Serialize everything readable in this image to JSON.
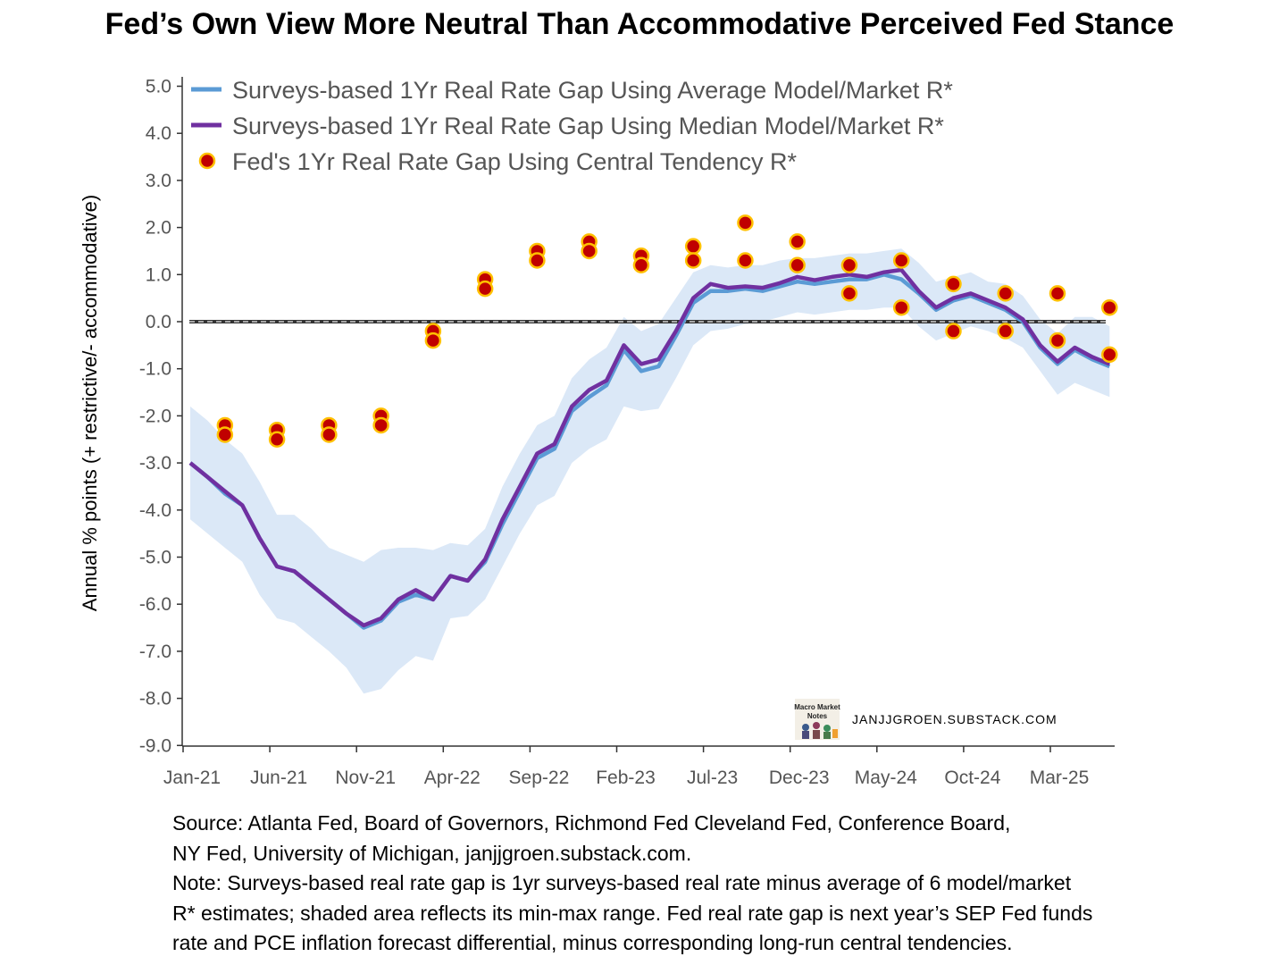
{
  "title": "Fed’s Own View More Neutral Than Accommodative Perceived Fed Stance",
  "notes": [
    "Source: Atlanta Fed, Board of Governors, Richmond Fed Cleveland Fed, Conference Board,",
    "NY Fed, University of Michigan, janjjgroen.substack.com.",
    "Note: Surveys-based real rate gap is 1yr surveys-based real rate minus average  of 6 model/market",
    "R* estimates; shaded area reflects its min-max range. Fed real rate gap is next year’s SEP Fed funds",
    "rate and PCE inflation forecast differential, minus corresponding long-run central tendencies."
  ],
  "watermark": {
    "logo_text": "Macro Market Notes",
    "site": "JANJJGROEN.SUBSTACK.COM"
  },
  "colors": {
    "average_line": "#5b9bd5",
    "median_line": "#7030a0",
    "band": "#dbe8f7",
    "dots_fill": "#c00000",
    "dots_edge": "#ffc000",
    "zero_line": "#333333"
  },
  "chart_data": {
    "type": "line",
    "ylabel": "Annual % points (+ restrictive/- accommodative)",
    "xlabel": "",
    "ylim": [
      -9.0,
      5.0
    ],
    "yticks": [
      "5.0",
      "4.0",
      "3.0",
      "2.0",
      "1.0",
      "0.0",
      "-1.0",
      "-2.0",
      "-3.0",
      "-4.0",
      "-5.0",
      "-6.0",
      "-7.0",
      "-8.0",
      "-9.0"
    ],
    "xticks": [
      "Jan-21",
      "Jun-21",
      "Nov-21",
      "Apr-22",
      "Sep-22",
      "Feb-23",
      "Jul-23",
      "Dec-23",
      "May-24",
      "Oct-24",
      "Mar-25"
    ],
    "reference_line": 0.0,
    "legend_position": "top-left",
    "series": [
      {
        "name": "Surveys-based 1Yr Real Rate Gap Using Average Model/Market R*",
        "kind": "line",
        "x": [
          "Jan-21",
          "Feb-21",
          "Mar-21",
          "Apr-21",
          "May-21",
          "Jun-21",
          "Jul-21",
          "Aug-21",
          "Sep-21",
          "Oct-21",
          "Nov-21",
          "Dec-21",
          "Jan-22",
          "Feb-22",
          "Mar-22",
          "Apr-22",
          "May-22",
          "Jun-22",
          "Jul-22",
          "Aug-22",
          "Sep-22",
          "Oct-22",
          "Nov-22",
          "Dec-22",
          "Jan-23",
          "Feb-23",
          "Mar-23",
          "Apr-23",
          "May-23",
          "Jun-23",
          "Jul-23",
          "Aug-23",
          "Sep-23",
          "Oct-23",
          "Nov-23",
          "Dec-23",
          "Jan-24",
          "Feb-24",
          "Mar-24",
          "Apr-24",
          "May-24",
          "Jun-24",
          "Jul-24",
          "Aug-24",
          "Sep-24",
          "Oct-24",
          "Nov-24",
          "Dec-24",
          "Jan-25",
          "Feb-25",
          "Mar-25",
          "Apr-25",
          "May-25",
          "Jun-25"
        ],
        "values": [
          -3.0,
          -3.3,
          -3.65,
          -3.9,
          -4.6,
          -5.2,
          -5.3,
          -5.6,
          -5.9,
          -6.2,
          -6.5,
          -6.35,
          -5.95,
          -5.8,
          -5.9,
          -5.4,
          -5.5,
          -5.1,
          -4.3,
          -3.6,
          -2.9,
          -2.7,
          -1.9,
          -1.6,
          -1.35,
          -0.6,
          -1.05,
          -0.95,
          -0.3,
          0.4,
          0.65,
          0.65,
          0.7,
          0.65,
          0.75,
          0.85,
          0.8,
          0.85,
          0.9,
          0.9,
          1.0,
          0.9,
          0.6,
          0.25,
          0.45,
          0.55,
          0.4,
          0.25,
          0.0,
          -0.55,
          -0.9,
          -0.6,
          -0.8,
          -0.95
        ]
      },
      {
        "name": "Surveys-based 1Yr Real Rate Gap Using Median Model/Market R*",
        "kind": "line",
        "x": [
          "Jan-21",
          "Feb-21",
          "Mar-21",
          "Apr-21",
          "May-21",
          "Jun-21",
          "Jul-21",
          "Aug-21",
          "Sep-21",
          "Oct-21",
          "Nov-21",
          "Dec-21",
          "Jan-22",
          "Feb-22",
          "Mar-22",
          "Apr-22",
          "May-22",
          "Jun-22",
          "Jul-22",
          "Aug-22",
          "Sep-22",
          "Oct-22",
          "Nov-22",
          "Dec-22",
          "Jan-23",
          "Feb-23",
          "Mar-23",
          "Apr-23",
          "May-23",
          "Jun-23",
          "Jul-23",
          "Aug-23",
          "Sep-23",
          "Oct-23",
          "Nov-23",
          "Dec-23",
          "Jan-24",
          "Feb-24",
          "Mar-24",
          "Apr-24",
          "May-24",
          "Jun-24",
          "Jul-24",
          "Aug-24",
          "Sep-24",
          "Oct-24",
          "Nov-24",
          "Dec-24",
          "Jan-25",
          "Feb-25",
          "Mar-25",
          "Apr-25",
          "May-25",
          "Jun-25"
        ],
        "values": [
          -3.0,
          -3.3,
          -3.6,
          -3.9,
          -4.6,
          -5.2,
          -5.3,
          -5.6,
          -5.9,
          -6.2,
          -6.45,
          -6.3,
          -5.9,
          -5.7,
          -5.9,
          -5.4,
          -5.5,
          -5.05,
          -4.2,
          -3.5,
          -2.8,
          -2.6,
          -1.8,
          -1.45,
          -1.25,
          -0.5,
          -0.9,
          -0.8,
          -0.2,
          0.5,
          0.8,
          0.72,
          0.75,
          0.72,
          0.82,
          0.95,
          0.88,
          0.95,
          1.0,
          0.95,
          1.05,
          1.1,
          0.65,
          0.3,
          0.5,
          0.6,
          0.45,
          0.3,
          0.05,
          -0.5,
          -0.85,
          -0.55,
          -0.75,
          -0.9
        ]
      }
    ],
    "band": {
      "name": "min-max range",
      "x": [
        "Jan-21",
        "Feb-21",
        "Mar-21",
        "Apr-21",
        "May-21",
        "Jun-21",
        "Jul-21",
        "Aug-21",
        "Sep-21",
        "Oct-21",
        "Nov-21",
        "Dec-21",
        "Jan-22",
        "Feb-22",
        "Mar-22",
        "Apr-22",
        "May-22",
        "Jun-22",
        "Jul-22",
        "Aug-22",
        "Sep-22",
        "Oct-22",
        "Nov-22",
        "Dec-22",
        "Jan-23",
        "Feb-23",
        "Mar-23",
        "Apr-23",
        "May-23",
        "Jun-23",
        "Jul-23",
        "Aug-23",
        "Sep-23",
        "Oct-23",
        "Nov-23",
        "Dec-23",
        "Jan-24",
        "Feb-24",
        "Mar-24",
        "Apr-24",
        "May-24",
        "Jun-24",
        "Jul-24",
        "Aug-24",
        "Sep-24",
        "Oct-24",
        "Nov-24",
        "Dec-24",
        "Jan-25",
        "Feb-25",
        "Mar-25",
        "Apr-25",
        "May-25",
        "Jun-25"
      ],
      "low": [
        -4.2,
        -4.5,
        -4.8,
        -5.1,
        -5.8,
        -6.3,
        -6.4,
        -6.7,
        -7.0,
        -7.35,
        -7.9,
        -7.8,
        -7.4,
        -7.1,
        -7.2,
        -6.3,
        -6.25,
        -5.9,
        -5.2,
        -4.5,
        -3.9,
        -3.7,
        -3.0,
        -2.7,
        -2.5,
        -1.8,
        -1.9,
        -1.85,
        -1.2,
        -0.5,
        -0.2,
        -0.15,
        -0.05,
        0.0,
        0.1,
        0.2,
        0.15,
        0.2,
        0.25,
        0.25,
        0.3,
        0.3,
        -0.1,
        -0.4,
        -0.25,
        -0.1,
        -0.2,
        -0.35,
        -0.55,
        -1.05,
        -1.55,
        -1.3,
        -1.45,
        -1.6
      ],
      "high": [
        -1.8,
        -2.1,
        -2.5,
        -2.8,
        -3.4,
        -4.1,
        -4.1,
        -4.4,
        -4.8,
        -4.95,
        -5.1,
        -4.85,
        -4.8,
        -4.8,
        -4.85,
        -4.7,
        -4.75,
        -4.4,
        -3.5,
        -2.8,
        -2.2,
        -2.0,
        -1.2,
        -0.8,
        -0.55,
        0.1,
        -0.2,
        -0.05,
        0.5,
        1.05,
        1.2,
        1.15,
        1.2,
        1.2,
        1.3,
        1.35,
        1.35,
        1.4,
        1.45,
        1.45,
        1.5,
        1.55,
        1.25,
        0.85,
        0.95,
        1.05,
        0.85,
        0.8,
        0.55,
        0.05,
        -0.25,
        0.1,
        0.1,
        -0.1
      ]
    },
    "dots": {
      "name": "Fed's 1Yr Real Rate Gap Using Central Tendency R*",
      "kind": "scatter",
      "points": [
        {
          "x": "Mar-21",
          "y": -2.2
        },
        {
          "x": "Mar-21",
          "y": -2.4
        },
        {
          "x": "Jun-21",
          "y": -2.3
        },
        {
          "x": "Jun-21",
          "y": -2.5
        },
        {
          "x": "Sep-21",
          "y": -2.2
        },
        {
          "x": "Sep-21",
          "y": -2.4
        },
        {
          "x": "Dec-21",
          "y": -2.0
        },
        {
          "x": "Dec-21",
          "y": -2.2
        },
        {
          "x": "Mar-22",
          "y": -0.2
        },
        {
          "x": "Mar-22",
          "y": -0.4
        },
        {
          "x": "Jun-22",
          "y": 0.9
        },
        {
          "x": "Jun-22",
          "y": 0.7
        },
        {
          "x": "Sep-22",
          "y": 1.5
        },
        {
          "x": "Sep-22",
          "y": 1.3
        },
        {
          "x": "Dec-22",
          "y": 1.7
        },
        {
          "x": "Dec-22",
          "y": 1.5
        },
        {
          "x": "Mar-23",
          "y": 1.4
        },
        {
          "x": "Mar-23",
          "y": 1.2
        },
        {
          "x": "Jun-23",
          "y": 1.6
        },
        {
          "x": "Jun-23",
          "y": 1.3
        },
        {
          "x": "Sep-23",
          "y": 2.1
        },
        {
          "x": "Sep-23",
          "y": 1.3
        },
        {
          "x": "Dec-23",
          "y": 1.7
        },
        {
          "x": "Dec-23",
          "y": 1.2
        },
        {
          "x": "Mar-24",
          "y": 1.2
        },
        {
          "x": "Mar-24",
          "y": 0.6
        },
        {
          "x": "Jun-24",
          "y": 1.3
        },
        {
          "x": "Jun-24",
          "y": 0.3
        },
        {
          "x": "Sep-24",
          "y": 0.8
        },
        {
          "x": "Sep-24",
          "y": -0.2
        },
        {
          "x": "Dec-24",
          "y": 0.6
        },
        {
          "x": "Dec-24",
          "y": -0.2
        },
        {
          "x": "Mar-25",
          "y": 0.6
        },
        {
          "x": "Mar-25",
          "y": -0.4
        },
        {
          "x": "Jun-25",
          "y": 0.3
        },
        {
          "x": "Jun-25",
          "y": -0.7
        }
      ]
    }
  }
}
